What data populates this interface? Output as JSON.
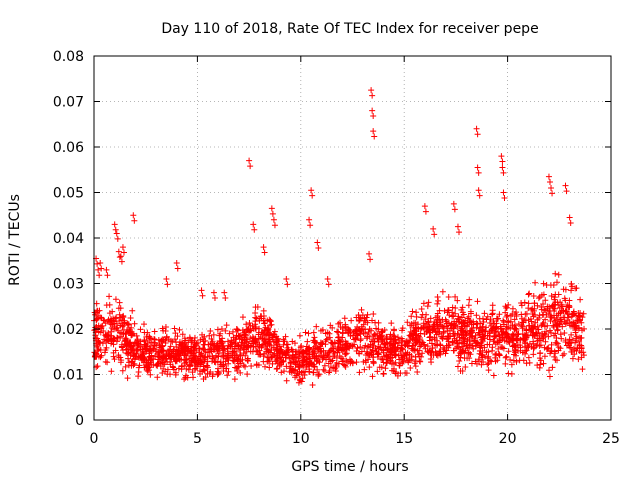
{
  "chart_data": {
    "type": "scatter",
    "title": "Day 110 of 2018, Rate Of TEC Index for receiver pepe",
    "xlabel": "GPS time / hours",
    "ylabel": "ROTI / TECUs",
    "xlim": [
      0,
      25
    ],
    "ylim": [
      0,
      0.08
    ],
    "x_ticks": [
      "0",
      "5",
      "10",
      "15",
      "20",
      "25"
    ],
    "y_ticks": [
      "0",
      "0.01",
      "0.02",
      "0.03",
      "0.04",
      "0.05",
      "0.06",
      "0.07",
      "0.08"
    ],
    "grid": true,
    "marker": "+",
    "marker_color": "#ff0000",
    "series": [
      {
        "name": "ROTI",
        "x": [
          0.1,
          0.2,
          0.3,
          0.6,
          1.0,
          1.1,
          1.2,
          1.3,
          1.4,
          1.9,
          3.5,
          4.0,
          5.2,
          5.8,
          6.3,
          7.5,
          7.7,
          8.2,
          8.6,
          8.7,
          9.3,
          10.4,
          10.5,
          10.8,
          11.3,
          13.3,
          13.4,
          13.45,
          13.5,
          16.0,
          16.4,
          17.4,
          17.6,
          18.5,
          18.55,
          18.6,
          19.7,
          19.75,
          19.8,
          22.0,
          22.1,
          22.8,
          23.0
        ],
        "y": [
          0.0355,
          0.033,
          0.0345,
          0.033,
          0.043,
          0.041,
          0.037,
          0.036,
          0.038,
          0.045,
          0.031,
          0.0345,
          0.0285,
          0.028,
          0.028,
          0.057,
          0.043,
          0.038,
          0.0465,
          0.044,
          0.031,
          0.044,
          0.0505,
          0.039,
          0.031,
          0.0365,
          0.0725,
          0.068,
          0.0635,
          0.047,
          0.042,
          0.0475,
          0.0425,
          0.064,
          0.0555,
          0.0505,
          0.058,
          0.0555,
          0.05,
          0.0535,
          0.051,
          0.0515,
          0.0445
        ],
        "band": {
          "hours": [
            0,
            1,
            2,
            3,
            4,
            5,
            6,
            7,
            8,
            9,
            10,
            11,
            12,
            13,
            14,
            15,
            16,
            17,
            18,
            19,
            20,
            21,
            22,
            23,
            23.7
          ],
          "low": [
            0.008,
            0.009,
            0.008,
            0.008,
            0.008,
            0.007,
            0.008,
            0.008,
            0.009,
            0.008,
            0.006,
            0.008,
            0.008,
            0.009,
            0.008,
            0.008,
            0.009,
            0.008,
            0.009,
            0.008,
            0.009,
            0.009,
            0.008,
            0.009,
            0.01
          ],
          "high": [
            0.026,
            0.028,
            0.022,
            0.02,
            0.02,
            0.019,
            0.021,
            0.022,
            0.026,
            0.019,
            0.018,
            0.021,
            0.023,
            0.025,
            0.022,
            0.022,
            0.027,
            0.028,
            0.027,
            0.026,
            0.026,
            0.028,
            0.033,
            0.032,
            0.025
          ],
          "count": 2600
        }
      }
    ]
  }
}
